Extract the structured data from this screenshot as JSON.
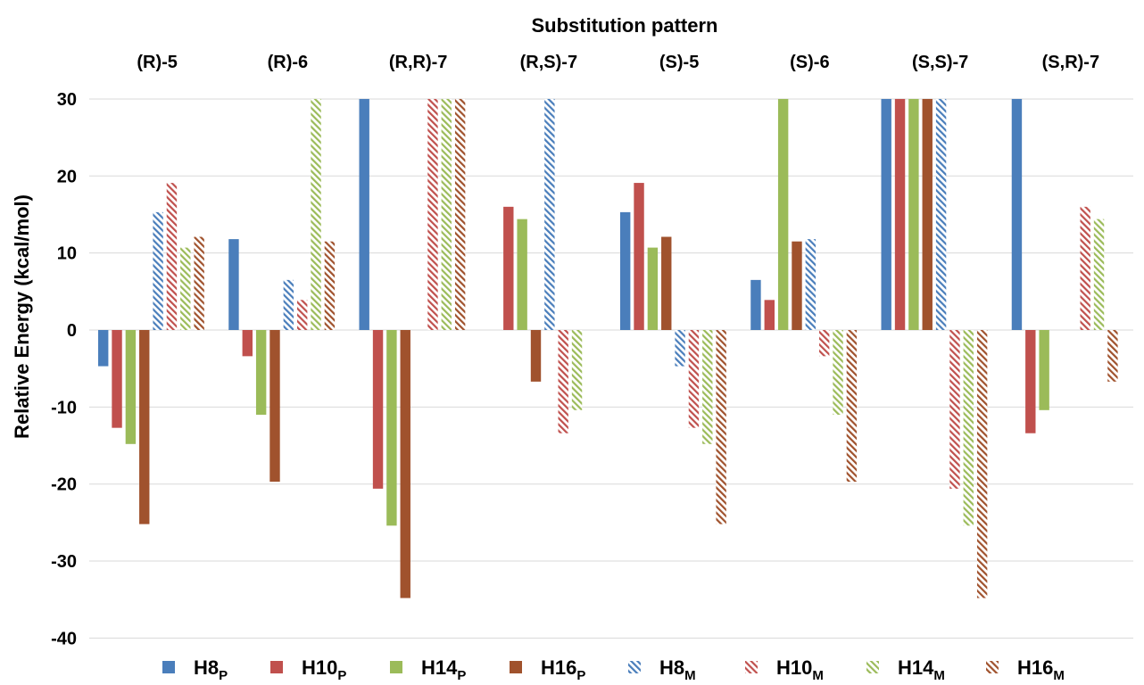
{
  "chart_data": {
    "type": "bar",
    "title": "Substitution pattern",
    "ylabel": "Relative Energy (kcal/mol)",
    "xlabel": "",
    "ylim": [
      -40,
      30
    ],
    "yticks": [
      30,
      20,
      10,
      0,
      -10,
      -20,
      -30,
      -40
    ],
    "grid": true,
    "legend_position": "bottom",
    "categories": [
      "(R)-5",
      "(R)-6",
      "(R,R)-7",
      "(R,S)-7",
      "(S)-5",
      "(S)-6",
      "(S,S)-7",
      "(S,R)-7"
    ],
    "series": [
      {
        "label_main": "H8",
        "label_sub": "P",
        "color": "#4a7ebb",
        "pattern": "solid",
        "values": [
          -4.7,
          11.8,
          30,
          0,
          15.3,
          6.5,
          30,
          30
        ]
      },
      {
        "label_main": "H10",
        "label_sub": "P",
        "color": "#c0504d",
        "pattern": "solid",
        "values": [
          -12.7,
          -3.4,
          -20.6,
          16.0,
          19.1,
          3.9,
          30,
          -13.4
        ]
      },
      {
        "label_main": "H14",
        "label_sub": "P",
        "color": "#9bbb59",
        "pattern": "solid",
        "values": [
          -14.8,
          -11.0,
          -25.4,
          14.4,
          10.7,
          30,
          30,
          -10.4
        ]
      },
      {
        "label_main": "H16",
        "label_sub": "P",
        "color": "#a0522d",
        "pattern": "solid",
        "values": [
          -25.2,
          -19.7,
          -34.8,
          -6.7,
          12.1,
          11.5,
          30,
          0
        ]
      },
      {
        "label_main": "H8",
        "label_sub": "M",
        "color": "#4a7ebb",
        "pattern": "hatched",
        "values": [
          15.3,
          6.5,
          0,
          30,
          -4.7,
          11.8,
          30,
          0
        ]
      },
      {
        "label_main": "H10",
        "label_sub": "M",
        "color": "#c0504d",
        "pattern": "hatched",
        "values": [
          19.1,
          3.9,
          30,
          -13.4,
          -12.7,
          -3.4,
          -20.6,
          16.0
        ]
      },
      {
        "label_main": "H14",
        "label_sub": "M",
        "color": "#9bbb59",
        "pattern": "hatched",
        "values": [
          10.7,
          30,
          30,
          -10.4,
          -14.8,
          -11.0,
          -25.4,
          14.4
        ]
      },
      {
        "label_main": "H16",
        "label_sub": "M",
        "color": "#a0522d",
        "pattern": "hatched",
        "values": [
          12.1,
          11.5,
          30,
          0,
          -25.2,
          -19.7,
          -34.8,
          -6.7
        ]
      }
    ]
  }
}
